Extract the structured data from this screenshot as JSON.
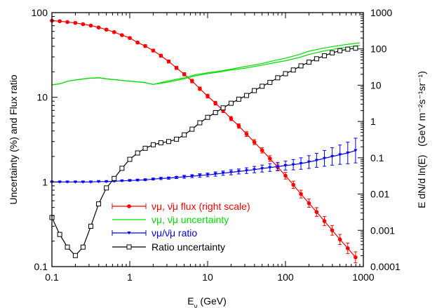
{
  "chart_data": {
    "type": "line",
    "xlabel": "E",
    "xlabel_sub": "ν",
    "xlabel_unit": " (GeV)",
    "ylabel_left": "Uncertainty (%) and Flux ratio",
    "ylabel_right": "E dN/d ln(E)   (GeV m⁻²s⁻¹sr⁻¹)",
    "xscale": "log",
    "yscale_left": "log",
    "yscale_right": "log",
    "xlim": [
      0.1,
      1000
    ],
    "ylim_left": [
      0.1,
      100
    ],
    "ylim_right": [
      0.0001,
      1000
    ],
    "x_ticks": [
      "0.1",
      "1",
      "10",
      "100",
      "1000"
    ],
    "y_left_ticks": [
      "0.1",
      "1",
      "10",
      "100"
    ],
    "y_right_ticks": [
      "0.0001",
      "0.001",
      "0.01",
      "0.1",
      "1",
      "10",
      "100",
      "1000"
    ],
    "legend": {
      "placement": "bottom-center",
      "entries": [
        {
          "label": "νμ, ν̄μ flux (right scale)",
          "color": "#ff0000",
          "marker": "circle"
        },
        {
          "label": "νμ, ν̄μ uncertainty",
          "color": "#00dd00",
          "marker": "none"
        },
        {
          "label": "νμ/ν̄μ ratio",
          "color": "#0000ff",
          "marker": "triangle"
        },
        {
          "label": "Ratio uncertainty",
          "color": "#000000",
          "marker": "square"
        }
      ]
    },
    "series": [
      {
        "name": "νμ, ν̄μ flux (right scale)",
        "axis": "right",
        "color": "#ff0000",
        "marker": "circle",
        "x": [
          0.1,
          0.126,
          0.158,
          0.2,
          0.251,
          0.316,
          0.398,
          0.501,
          0.631,
          0.794,
          1,
          1.26,
          1.58,
          2,
          2.51,
          3.16,
          3.98,
          5.01,
          6.31,
          7.94,
          10,
          12.6,
          15.8,
          20,
          25.1,
          31.6,
          39.8,
          50.1,
          63.1,
          79.4,
          100,
          126,
          158,
          200,
          251,
          316,
          398,
          501,
          631,
          794
        ],
        "y": [
          600,
          580,
          550,
          520,
          480,
          440,
          390,
          340,
          290,
          240,
          200,
          150,
          120,
          90,
          65,
          45,
          30,
          20,
          13,
          8,
          5,
          3.2,
          2,
          1.2,
          0.75,
          0.45,
          0.27,
          0.16,
          0.095,
          0.055,
          0.032,
          0.018,
          0.01,
          0.0056,
          0.0032,
          0.0018,
          0.001,
          0.00056,
          0.00032,
          0.00018
        ],
        "err_rel": [
          0.06,
          0.06,
          0.06,
          0.06,
          0.06,
          0.06,
          0.06,
          0.07,
          0.07,
          0.07,
          0.08,
          0.08,
          0.09,
          0.09,
          0.1,
          0.1,
          0.11,
          0.11,
          0.12,
          0.12,
          0.13,
          0.13,
          0.14,
          0.14,
          0.15,
          0.16,
          0.17,
          0.18,
          0.2,
          0.22,
          0.24,
          0.26,
          0.28,
          0.3,
          0.32,
          0.34,
          0.36,
          0.38,
          0.4,
          0.42
        ]
      },
      {
        "name": "νμ, ν̄μ uncertainty (upper)",
        "axis": "left",
        "color": "#00dd00",
        "marker": "none",
        "x": [
          0.1,
          0.13,
          0.16,
          0.2,
          0.3,
          0.4,
          0.5,
          0.7,
          1,
          1.5,
          2,
          3,
          5,
          7,
          10,
          15,
          20,
          30,
          50,
          70,
          100,
          150,
          200,
          300,
          500,
          900
        ],
        "y": [
          14,
          14.5,
          15.5,
          16,
          16.8,
          17,
          16.5,
          16,
          15.5,
          15,
          14.2,
          15.5,
          17,
          18.5,
          19.5,
          20.5,
          21.5,
          23,
          25,
          27,
          29,
          32,
          35,
          38,
          41,
          44
        ]
      },
      {
        "name": "νμ, ν̄μ uncertainty (lower)",
        "axis": "left",
        "color": "#00dd00",
        "marker": "none",
        "x": [
          0.1,
          0.13,
          0.16,
          0.2,
          0.3,
          0.4,
          0.5,
          0.7,
          1,
          1.5,
          2,
          3,
          5,
          7,
          10,
          15,
          20,
          30,
          50,
          70,
          100,
          150,
          200,
          300,
          500,
          900
        ],
        "y": [
          14,
          14.5,
          15.5,
          16,
          16.8,
          17,
          16.5,
          16,
          15.5,
          15,
          14.2,
          15,
          16.5,
          18,
          19,
          20,
          21,
          22,
          24,
          25.5,
          27,
          29.5,
          32,
          35,
          38,
          41
        ]
      },
      {
        "name": "νμ/ν̄μ ratio",
        "axis": "left",
        "color": "#0000ff",
        "marker": "triangle",
        "x": [
          0.1,
          0.126,
          0.158,
          0.2,
          0.251,
          0.316,
          0.398,
          0.501,
          0.631,
          0.794,
          1,
          1.26,
          1.58,
          2,
          2.51,
          3.16,
          3.98,
          5.01,
          6.31,
          7.94,
          10,
          12.6,
          15.8,
          20,
          25.1,
          31.6,
          39.8,
          50.1,
          63.1,
          79.4,
          100,
          126,
          158,
          200,
          251,
          316,
          398,
          501,
          631,
          794
        ],
        "y": [
          1.0,
          1.0,
          1.0,
          1.0,
          1.0,
          1.0,
          1.01,
          1.01,
          1.02,
          1.03,
          1.04,
          1.05,
          1.06,
          1.08,
          1.1,
          1.11,
          1.13,
          1.15,
          1.17,
          1.19,
          1.21,
          1.24,
          1.27,
          1.3,
          1.33,
          1.36,
          1.4,
          1.44,
          1.48,
          1.52,
          1.56,
          1.6,
          1.65,
          1.72,
          1.8,
          1.9,
          2.0,
          2.1,
          2.2,
          2.35
        ],
        "err_rel": [
          0.01,
          0.01,
          0.01,
          0.01,
          0.01,
          0.01,
          0.01,
          0.01,
          0.01,
          0.01,
          0.02,
          0.02,
          0.02,
          0.02,
          0.03,
          0.03,
          0.03,
          0.04,
          0.04,
          0.05,
          0.05,
          0.06,
          0.06,
          0.07,
          0.07,
          0.08,
          0.09,
          0.1,
          0.11,
          0.12,
          0.13,
          0.15,
          0.17,
          0.19,
          0.21,
          0.24,
          0.27,
          0.3,
          0.34,
          0.4
        ]
      },
      {
        "name": "Ratio uncertainty",
        "axis": "left",
        "color": "#000000",
        "marker": "square",
        "x": [
          0.1,
          0.126,
          0.158,
          0.2,
          0.251,
          0.316,
          0.398,
          0.501,
          0.631,
          0.794,
          1,
          1.26,
          1.58,
          2,
          2.51,
          3.16,
          3.98,
          5.01,
          6.31,
          7.94,
          10,
          12.6,
          15.8,
          20,
          25.1,
          31.6,
          39.8,
          50.1,
          63.1,
          79.4,
          100,
          126,
          158,
          200,
          251,
          316,
          398,
          501,
          631,
          794
        ],
        "y": [
          0.38,
          0.24,
          0.17,
          0.135,
          0.17,
          0.3,
          0.55,
          0.85,
          1.1,
          1.45,
          1.85,
          2.2,
          2.5,
          2.75,
          2.9,
          3.0,
          3.2,
          3.6,
          4.2,
          5.0,
          5.8,
          6.6,
          7.5,
          8.5,
          9.5,
          10.5,
          12,
          13.5,
          15,
          17,
          19,
          21,
          23.5,
          26,
          28.5,
          31,
          33.5,
          35.5,
          37,
          38
        ]
      }
    ]
  }
}
